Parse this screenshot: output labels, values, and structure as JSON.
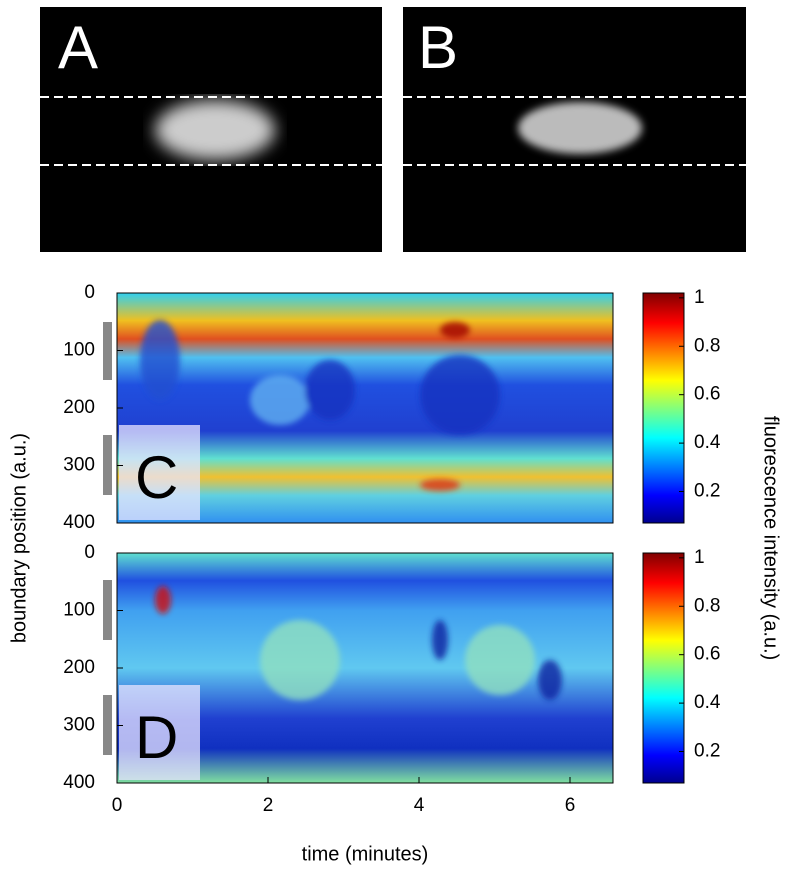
{
  "panels": [
    {
      "label": "A"
    },
    {
      "label": "B"
    },
    {
      "label": "C"
    },
    {
      "label": "D"
    }
  ],
  "axes": {
    "x_label": "time (minutes)",
    "y_label": "boundary position (a.u.)",
    "x_ticks": [
      0,
      2,
      4,
      6
    ],
    "y_ticks": [
      0,
      100,
      200,
      300,
      400
    ]
  },
  "colorbar": {
    "label": "fluorescence intensity (a.u.)",
    "ticks": [
      1,
      0.8,
      0.6,
      0.4,
      0.2
    ]
  }
}
